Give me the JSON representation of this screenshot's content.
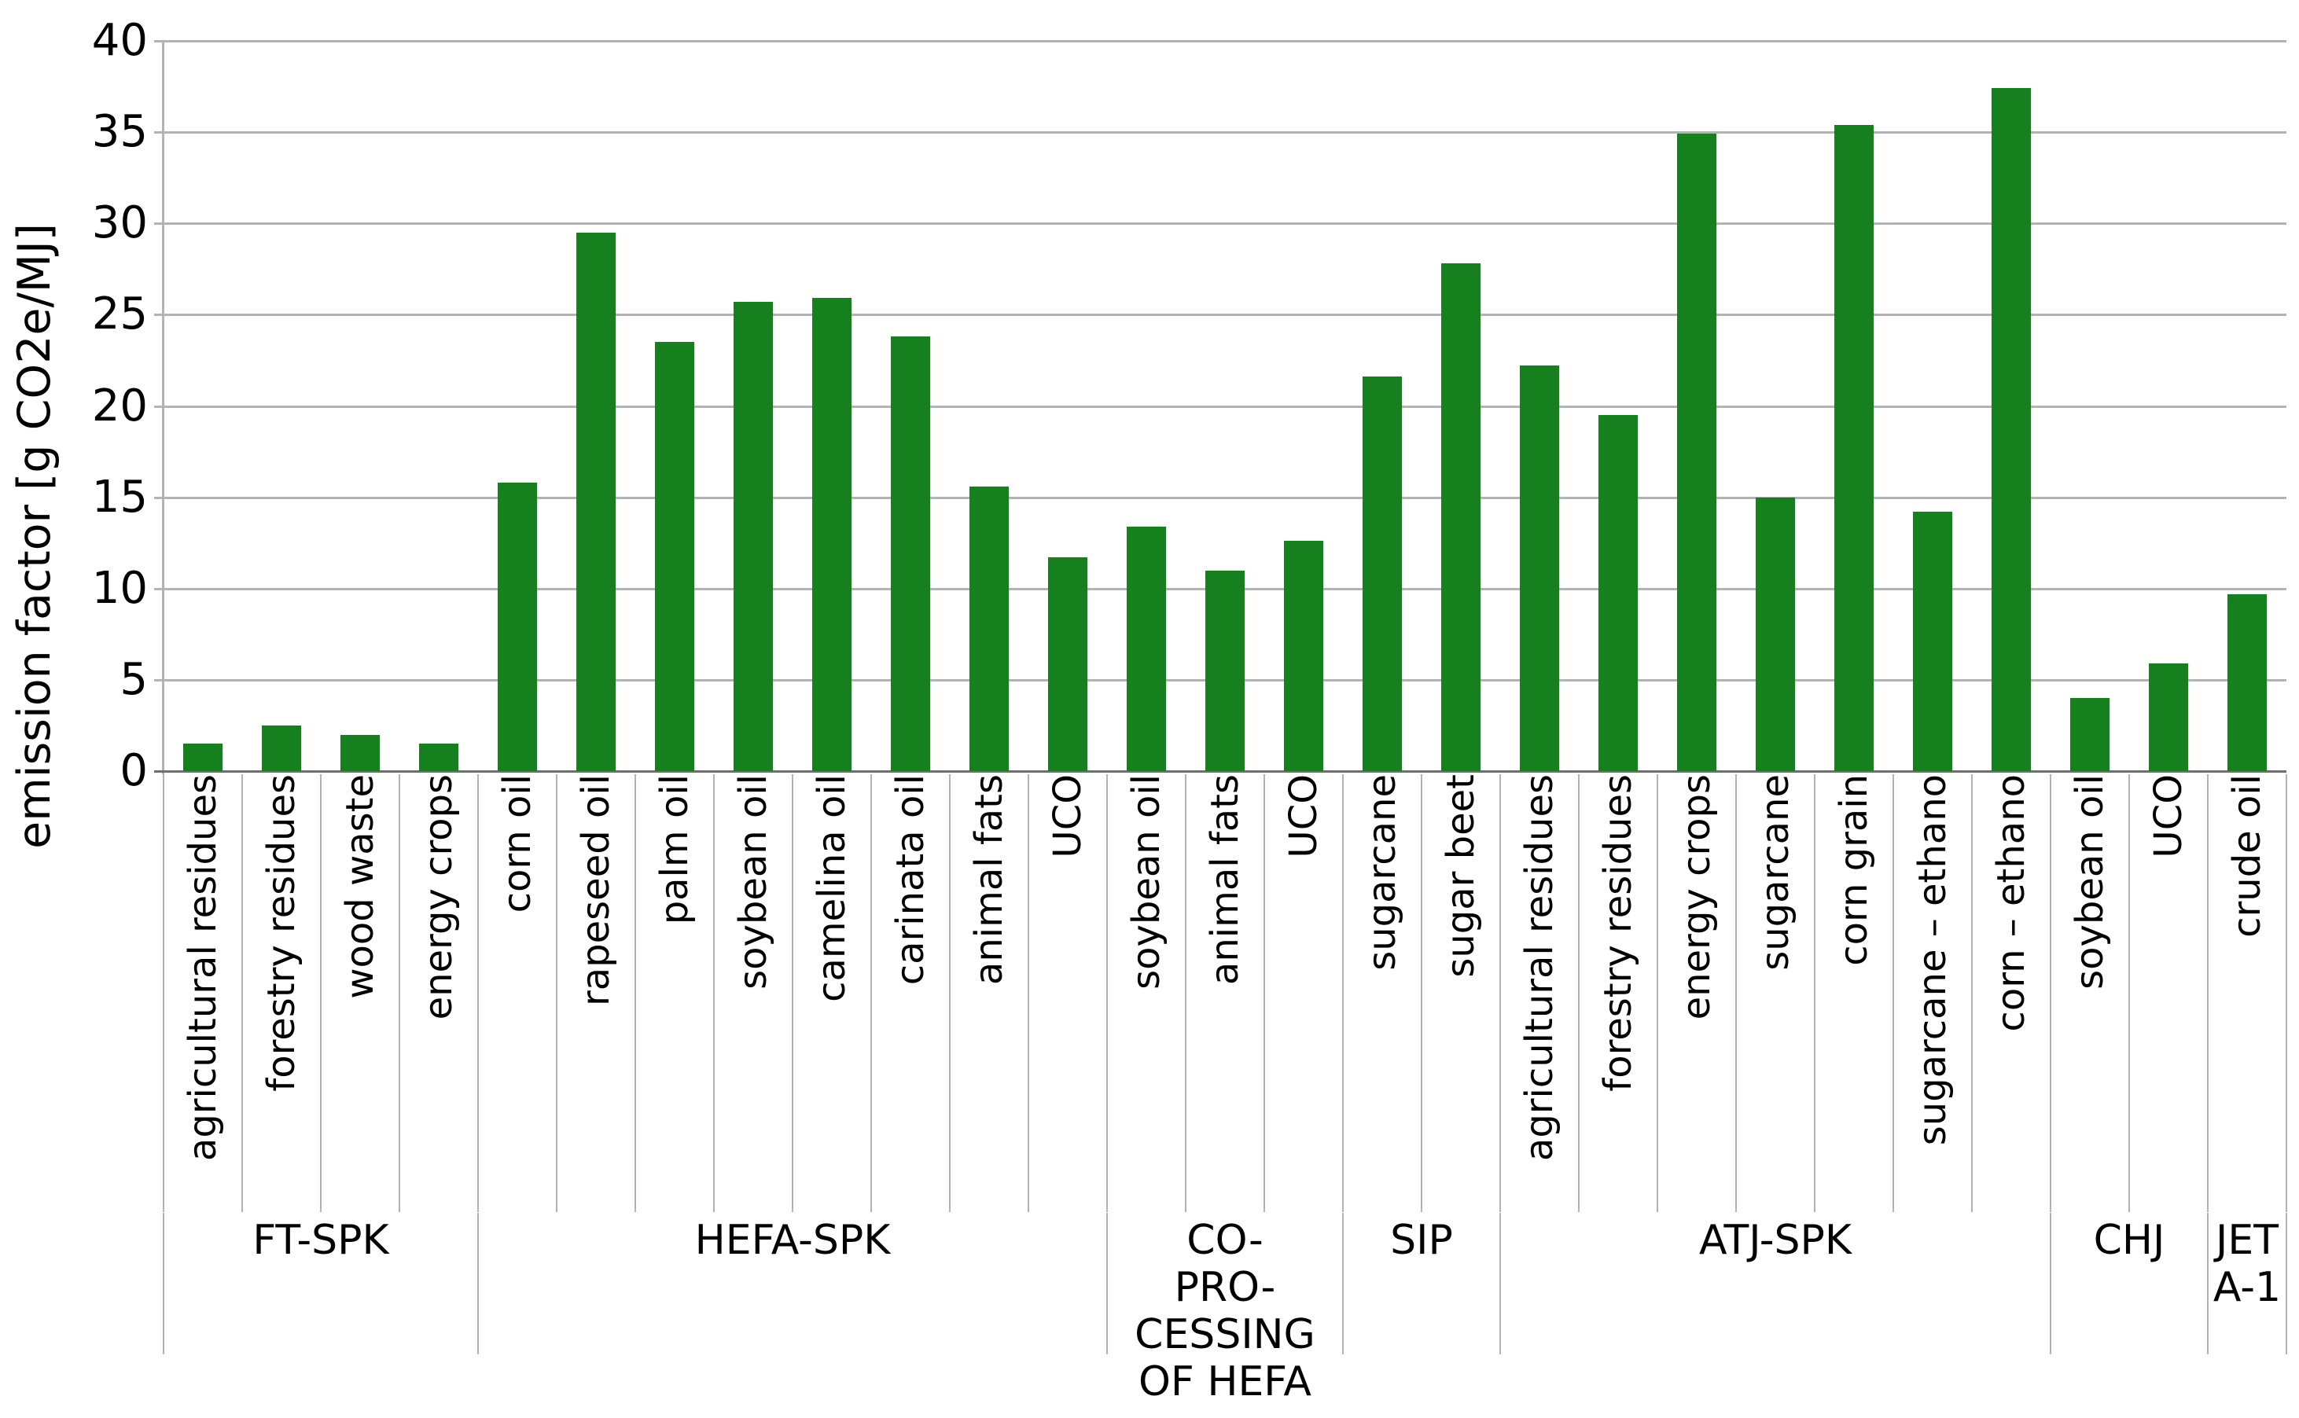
{
  "chart_data": {
    "type": "bar",
    "title": "",
    "xlabel": "",
    "ylabel": "emission factor [g CO2e/MJ]",
    "ylim": [
      0,
      40
    ],
    "yticks": [
      0,
      5,
      10,
      15,
      20,
      25,
      30,
      35,
      40
    ],
    "grid": "horizontal",
    "legend": "none",
    "bar_color_hex": "#17801e",
    "gridline_color_hex": "#b3b3b3",
    "zero_axis_color_hex": "#6e6e6e",
    "groups": [
      {
        "label": "FT-SPK",
        "display_label": "FT-SPK",
        "items": [
          {
            "label": "agricultural residues",
            "value": 1.5
          },
          {
            "label": "forestry residues",
            "value": 2.5
          },
          {
            "label": "wood waste",
            "value": 2.0
          },
          {
            "label": "energy crops",
            "value": 1.5
          }
        ]
      },
      {
        "label": "HEFA-SPK",
        "display_label": "HEFA-SPK",
        "items": [
          {
            "label": "corn oil",
            "value": 15.8
          },
          {
            "label": "rapeseed oil",
            "value": 29.5
          },
          {
            "label": "palm oil",
            "value": 23.5
          },
          {
            "label": "soybean oil",
            "value": 25.7
          },
          {
            "label": "camelina oil",
            "value": 25.9
          },
          {
            "label": "carinata oil",
            "value": 23.8
          },
          {
            "label": "animal fats",
            "value": 15.6
          },
          {
            "label": "UCO",
            "value": 11.7
          }
        ]
      },
      {
        "label": "CO-PRO-CESSING OF HEFA",
        "display_label": "CO-\nPRO-\nCESSING\nOF HEFA",
        "items": [
          {
            "label": "soybean oil",
            "value": 13.4
          },
          {
            "label": "animal fats",
            "value": 11.0
          },
          {
            "label": "UCO",
            "value": 12.6
          }
        ]
      },
      {
        "label": "SIP",
        "display_label": "SIP",
        "items": [
          {
            "label": "sugarcane",
            "value": 21.6
          },
          {
            "label": "sugar beet",
            "value": 27.8
          }
        ]
      },
      {
        "label": "ATJ-SPK",
        "display_label": "ATJ-SPK",
        "items": [
          {
            "label": "agricultural residues",
            "value": 22.2
          },
          {
            "label": "forestry residues",
            "value": 19.5
          },
          {
            "label": "energy crops",
            "value": 34.9
          },
          {
            "label": "sugarcane",
            "value": 15.0
          },
          {
            "label": "corn grain",
            "value": 35.4
          },
          {
            "label": "sugarcane – ethano",
            "value": 14.2
          },
          {
            "label": "corn – ethano",
            "value": 37.4
          }
        ]
      },
      {
        "label": "CHJ",
        "display_label": "CHJ",
        "items": [
          {
            "label": "soybean oil",
            "value": 4.0
          },
          {
            "label": "UCO",
            "value": 5.9
          }
        ]
      },
      {
        "label": "JET A-1",
        "display_label": "JET\nA-1",
        "items": [
          {
            "label": "crude oil",
            "value": 9.7
          }
        ]
      }
    ]
  }
}
